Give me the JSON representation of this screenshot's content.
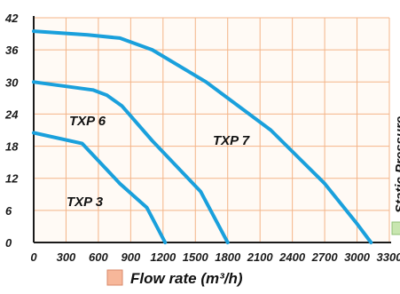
{
  "chart_data": {
    "type": "line",
    "xlabel": "Flow rate (m³/h)",
    "ylabel": "Static Pressure",
    "xlim": [
      0,
      3300
    ],
    "ylim": [
      0,
      42
    ],
    "xticks": [
      "0",
      "300",
      "600",
      "900",
      "1200",
      "1500",
      "1800",
      "2100",
      "2400",
      "2700",
      "3000",
      "3300"
    ],
    "yticks": [
      "0",
      "6",
      "12",
      "18",
      "24",
      "30",
      "36",
      "42"
    ],
    "grid": true,
    "colors": {
      "series": "#1aa0dc",
      "grid": "#f4b488",
      "background": "#fffaf5",
      "axis": "#1a1a1a",
      "legend_swatch_x": "#f7b79a",
      "legend_swatch_y": "#c8e6b0"
    },
    "series": [
      {
        "name": "TXP 3",
        "x": [
          0,
          450,
          800,
          1050,
          1220
        ],
        "y": [
          20.5,
          18.5,
          11,
          6.5,
          0
        ]
      },
      {
        "name": "TXP 6",
        "x": [
          0,
          550,
          680,
          820,
          1100,
          1550,
          1800
        ],
        "y": [
          30,
          28.5,
          27.5,
          25.5,
          19,
          9.5,
          0
        ]
      },
      {
        "name": "TXP 7",
        "x": [
          0,
          500,
          800,
          1100,
          1600,
          2200,
          2700,
          3000,
          3130
        ],
        "y": [
          39.5,
          38.8,
          38.2,
          36,
          30,
          21,
          11,
          3.5,
          0
        ]
      }
    ]
  }
}
